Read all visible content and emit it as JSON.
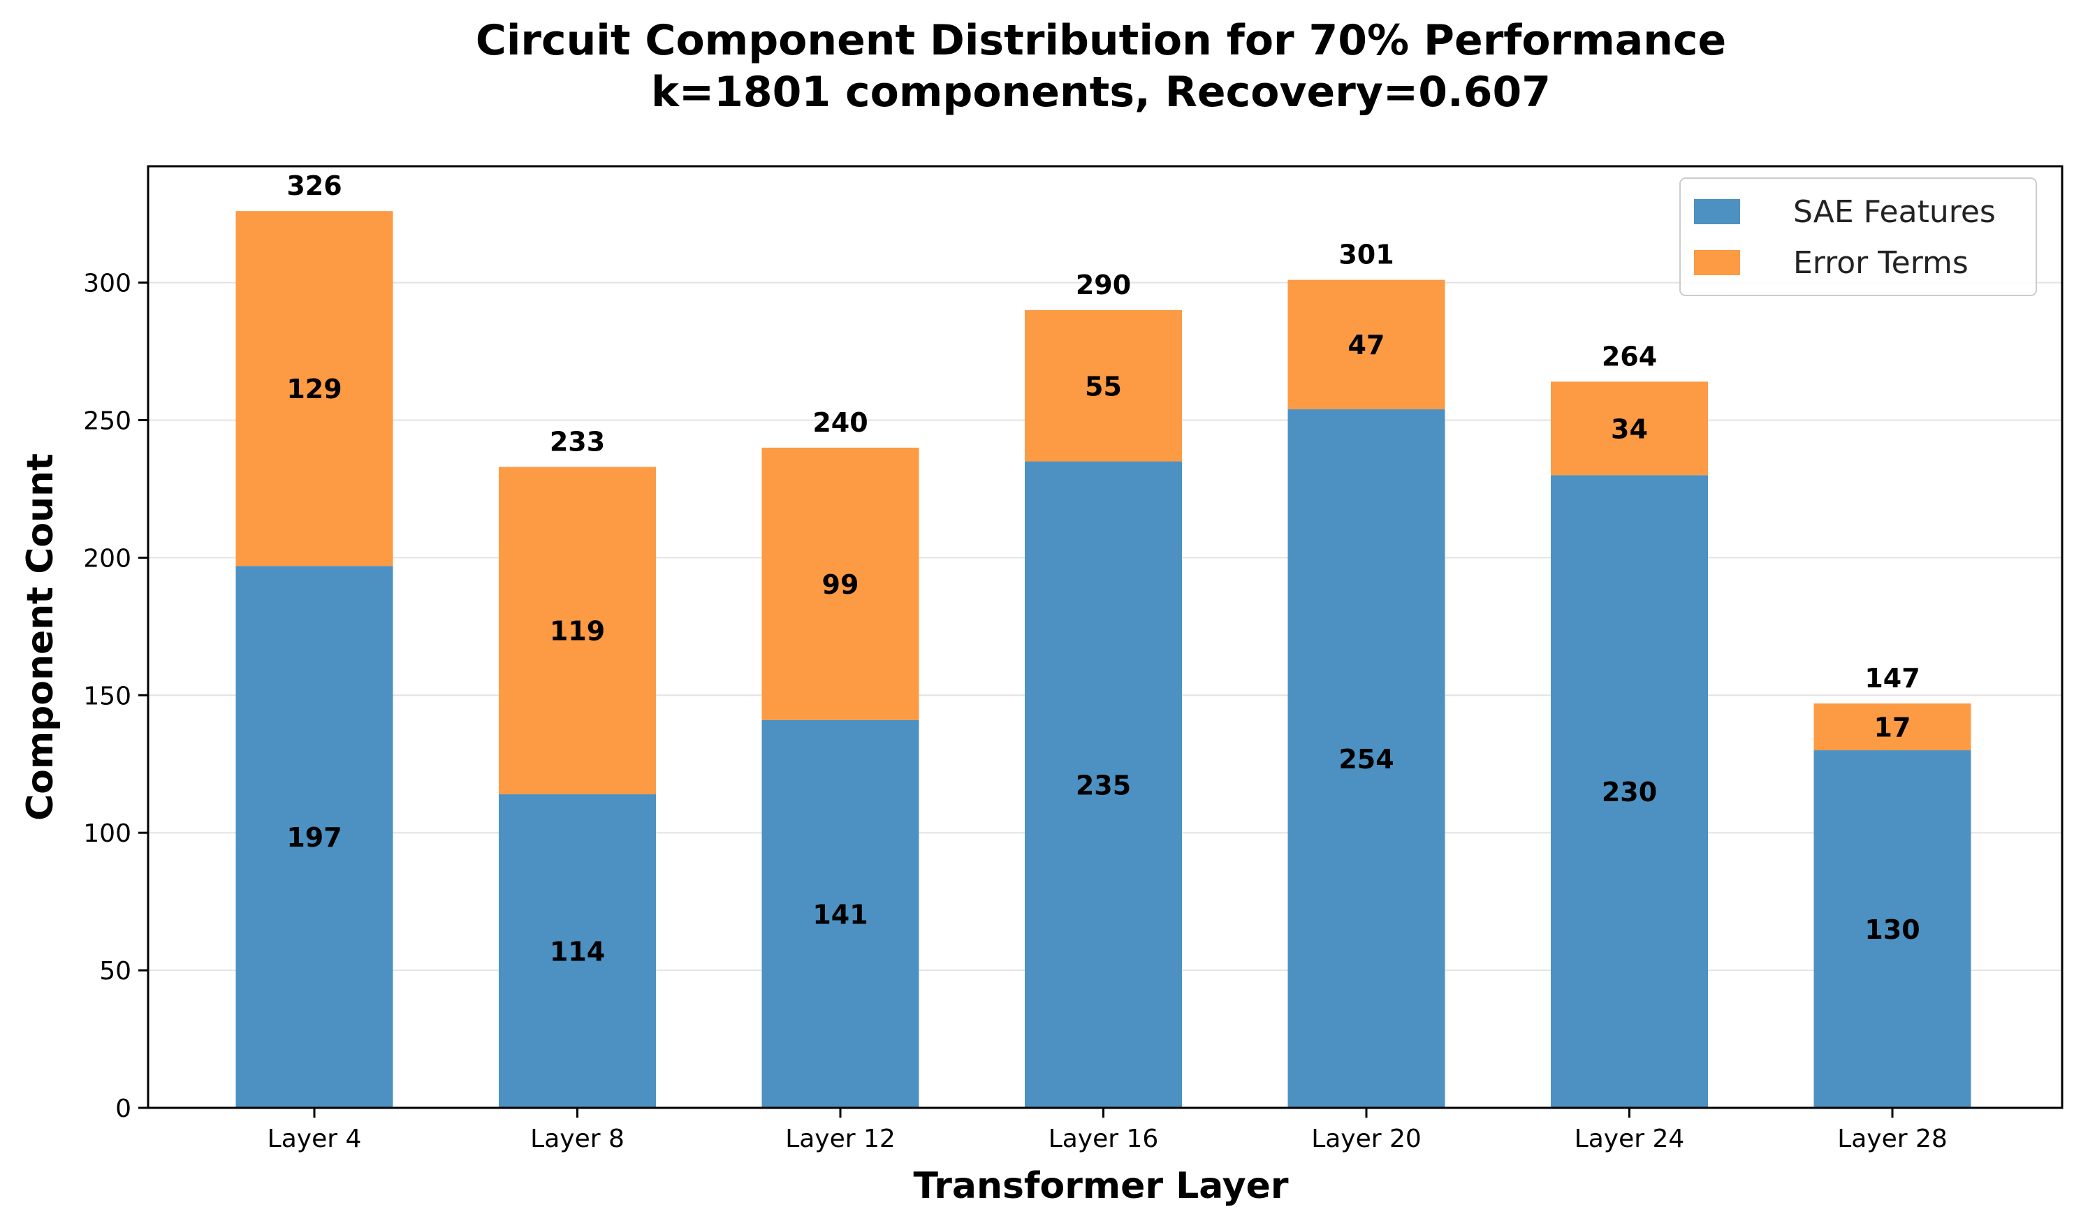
{
  "chart_data": {
    "type": "bar",
    "stacked": true,
    "title": "Circuit Component Distribution for 70% Performance",
    "subtitle": "k=1801 components, Recovery=0.607",
    "xlabel": "Transformer Layer",
    "ylabel": "Component Count",
    "categories": [
      "Layer 4",
      "Layer 8",
      "Layer 12",
      "Layer 16",
      "Layer 20",
      "Layer 24",
      "Layer 28"
    ],
    "series": [
      {
        "name": "SAE Features",
        "color": "#4c91c2",
        "values": [
          197,
          114,
          141,
          235,
          254,
          230,
          130
        ]
      },
      {
        "name": "Error Terms",
        "color": "#fd9a44",
        "values": [
          129,
          119,
          99,
          55,
          47,
          34,
          17
        ]
      }
    ],
    "totals": [
      326,
      233,
      240,
      290,
      301,
      264,
      147
    ],
    "ylim": [
      0,
      342.3
    ],
    "yticks": [
      0,
      50,
      100,
      150,
      200,
      250,
      300
    ],
    "grid": "y",
    "legend": "top-right"
  }
}
